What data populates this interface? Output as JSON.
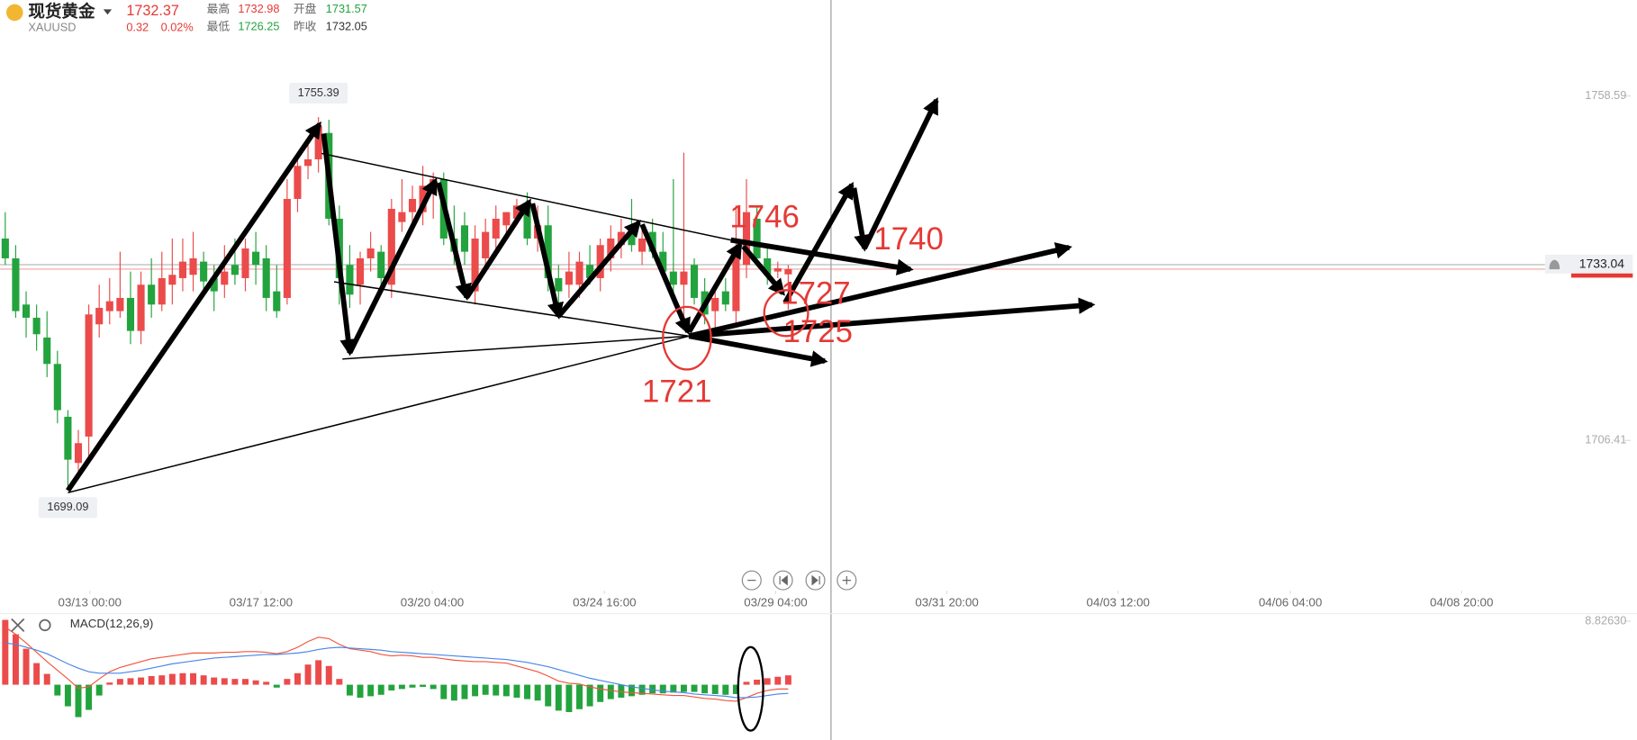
{
  "header": {
    "name": "现货黄金",
    "symbol": "XAUUSD",
    "last": 1732.37,
    "change": 0.32,
    "change_pct": "0.02%",
    "stats": [
      {
        "label": "最高",
        "value": 1732.98
      },
      {
        "label": "开盘",
        "value": 1731.57
      },
      {
        "label": "最低",
        "value": 1726.25
      },
      {
        "label": "昨收",
        "value": 1732.05
      }
    ]
  },
  "chart_data": [
    {
      "type": "candlestick",
      "up_color": "#eb4b4b",
      "down_color": "#23a33d",
      "open": [
        1737,
        1734,
        1727,
        1725,
        1722,
        1718,
        1710,
        1703,
        1707,
        1724,
        1726,
        1726,
        1728,
        1723,
        1730,
        1727,
        1730,
        1731,
        1731.5,
        1733.5,
        1731,
        1730,
        1733,
        1731,
        1735,
        1734,
        1729,
        1728,
        1743,
        1748,
        1749,
        1753,
        1740,
        1733,
        1730,
        1734,
        1735,
        1730,
        1739.5,
        1741,
        1741,
        1744,
        1746,
        1737,
        1739,
        1729,
        1734,
        1737,
        1739,
        1740,
        1742,
        1737,
        1739,
        1731,
        1730,
        1730,
        1733,
        1731,
        1734,
        1736,
        1738,
        1735,
        1738,
        1735,
        1732,
        1730,
        1733,
        1729,
        1726,
        1729,
        1726,
        1733,
        1740,
        1734,
        1732,
        1731.57
      ],
      "high": [
        1741,
        1736,
        1729,
        1727,
        1726,
        1720,
        1711,
        1708,
        1727,
        1730,
        1731,
        1735,
        1732,
        1732,
        1734,
        1735,
        1737,
        1737,
        1738,
        1735,
        1733,
        1736,
        1737,
        1737,
        1738,
        1736,
        1733,
        1746,
        1750,
        1752,
        1755.39,
        1755,
        1742,
        1736,
        1735,
        1738,
        1736,
        1743,
        1746,
        1745,
        1748,
        1747,
        1747,
        1742,
        1741,
        1739,
        1740,
        1742,
        1741,
        1743,
        1744,
        1742,
        1742,
        1733,
        1735,
        1735,
        1736,
        1737,
        1739,
        1740,
        1743,
        1739,
        1740,
        1738,
        1746,
        1750,
        1734,
        1731,
        1730,
        1731,
        1742,
        1746,
        1742,
        1736,
        1733.5,
        1732.98
      ],
      "low": [
        1733,
        1725,
        1722,
        1720,
        1716,
        1709,
        1699.09,
        1701,
        1704,
        1722,
        1724,
        1725,
        1721,
        1721,
        1725,
        1726,
        1727,
        1729,
        1729,
        1729,
        1726,
        1728,
        1730,
        1729,
        1730,
        1726,
        1725,
        1727,
        1741,
        1746,
        1747,
        1739,
        1727,
        1726.5,
        1727,
        1732,
        1729,
        1728,
        1738,
        1738,
        1739,
        1740,
        1736,
        1733,
        1733,
        1727,
        1732,
        1735,
        1737,
        1739,
        1736,
        1735,
        1729,
        1727,
        1728,
        1728,
        1730,
        1729,
        1732,
        1734,
        1735,
        1733,
        1734,
        1731,
        1728,
        1725,
        1727,
        1724,
        1723,
        1726,
        1724,
        1731,
        1733,
        1730,
        1731,
        1726.25
      ],
      "close": [
        1734,
        1726,
        1725,
        1722.5,
        1718,
        1711,
        1703.5,
        1706,
        1725.5,
        1726.5,
        1727.5,
        1728,
        1723,
        1730,
        1727,
        1731,
        1731.5,
        1733.5,
        1734,
        1730.5,
        1729,
        1732,
        1731.5,
        1735.5,
        1733,
        1728,
        1726,
        1743,
        1748,
        1749,
        1754,
        1740,
        1731,
        1728.5,
        1734,
        1735.5,
        1731,
        1741.5,
        1741,
        1743,
        1745,
        1746,
        1737,
        1735,
        1735,
        1737,
        1738,
        1740,
        1741,
        1742,
        1737,
        1739,
        1731,
        1729,
        1732,
        1733.5,
        1731,
        1736,
        1737,
        1738,
        1736,
        1737,
        1735,
        1732,
        1730,
        1732,
        1728,
        1725.5,
        1728,
        1727,
        1735,
        1741,
        1734,
        1731.5,
        1732.5,
        1732.37
      ],
      "xlim": [
        -0.5,
        147.5
      ],
      "xticks": [
        {
          "value": 8.1,
          "label": "03/13 00:00"
        },
        {
          "value": 24.5,
          "label": "03/17 12:00"
        },
        {
          "value": 40.9,
          "label": "03/20 04:00"
        },
        {
          "value": 57.4,
          "label": "03/24 16:00"
        },
        {
          "value": 73.8,
          "label": "03/29 04:00"
        },
        {
          "value": 90.2,
          "label": "03/31 20:00"
        },
        {
          "value": 106.6,
          "label": "04/03 12:00"
        },
        {
          "value": 123.1,
          "label": "04/06 04:00"
        },
        {
          "value": 139.5,
          "label": "04/08 20:00"
        }
      ],
      "ylim": [
        1684.59,
        1766.81
      ],
      "yticks": [
        1706.41,
        1758.59
      ],
      "current_price": 1733.04,
      "annotations": [
        "1746",
        "1740",
        "1727",
        "1725",
        "1721"
      ]
    },
    {
      "type": "macd",
      "title": "MACD(12,26,9)",
      "up_color": "#eb4b4b",
      "down_color": "#23a33d",
      "ylim": [
        -7.68,
        9.86
      ],
      "yticks": [
        {
          "value": 8.8263,
          "label": "8.82630"
        }
      ],
      "series": [
        {
          "style": "bar",
          "values": [
            9.0,
            7.0,
            5.0,
            3.0,
            1.5,
            -1.5,
            -3.0,
            -4.5,
            -3.5,
            -1.5,
            0.3,
            0.8,
            0.9,
            1.0,
            1.2,
            1.3,
            1.5,
            1.6,
            1.6,
            1.3,
            1.0,
            0.9,
            0.8,
            0.8,
            0.6,
            0.4,
            -0.4,
            0.8,
            1.6,
            2.8,
            3.4,
            2.6,
            0.8,
            -1.5,
            -1.8,
            -1.6,
            -1.4,
            -0.8,
            -0.6,
            -0.4,
            -0.3,
            -0.6,
            -2.0,
            -2.2,
            -2.0,
            -1.6,
            -1.4,
            -1.5,
            -1.6,
            -1.8,
            -2.0,
            -2.2,
            -3.0,
            -3.6,
            -3.8,
            -3.4,
            -3.0,
            -2.4,
            -2.0,
            -1.8,
            -1.6,
            -1.4,
            -1.2,
            -1.2,
            -1.1,
            -1.0,
            -1.0,
            -1.2,
            -1.3,
            -1.4,
            -1.3,
            0.4,
            0.7,
            0.9,
            1.1,
            1.3
          ]
        },
        {
          "style": "line",
          "color": "#f0563c",
          "values": [
            8.0,
            7.0,
            5.8,
            4.5,
            3.2,
            2.0,
            0.8,
            -0.5,
            -0.3,
            0.8,
            1.8,
            2.4,
            2.8,
            3.2,
            3.6,
            3.8,
            4.0,
            4.2,
            4.4,
            4.4,
            4.4,
            4.5,
            4.5,
            4.6,
            4.6,
            4.5,
            4.3,
            4.6,
            5.2,
            6.0,
            6.6,
            6.4,
            5.6,
            5.0,
            4.8,
            4.6,
            4.2,
            4.0,
            4.1,
            4.0,
            3.8,
            3.8,
            3.6,
            3.4,
            3.3,
            3.2,
            3.2,
            3.1,
            3.0,
            2.6,
            2.2,
            1.8,
            1.2,
            0.5,
            0.2,
            0.1,
            -0.3,
            -0.6,
            -0.8,
            -1.0,
            -1.1,
            -1.2,
            -1.3,
            -1.4,
            -1.5,
            -1.5,
            -1.7,
            -1.9,
            -2.0,
            -2.2,
            -2.3,
            -1.8,
            -1.2,
            -0.8,
            -0.6,
            -0.6
          ]
        },
        {
          "style": "line",
          "color": "#4a86e8",
          "values": [
            5.8,
            5.6,
            5.2,
            4.8,
            4.3,
            3.6,
            2.9,
            2.3,
            1.8,
            1.6,
            1.6,
            1.6,
            1.8,
            2.0,
            2.3,
            2.6,
            2.9,
            3.1,
            3.3,
            3.5,
            3.7,
            3.8,
            3.9,
            4.0,
            4.1,
            4.2,
            4.2,
            4.3,
            4.4,
            4.6,
            4.9,
            5.1,
            5.2,
            5.1,
            5.0,
            4.9,
            4.8,
            4.6,
            4.5,
            4.4,
            4.3,
            4.2,
            4.1,
            4.0,
            3.9,
            3.8,
            3.7,
            3.6,
            3.5,
            3.3,
            3.1,
            2.8,
            2.5,
            2.1,
            1.7,
            1.3,
            0.9,
            0.6,
            0.3,
            0.0,
            -0.3,
            -0.5,
            -0.7,
            -0.9,
            -1.0,
            -1.1,
            -1.3,
            -1.4,
            -1.5,
            -1.6,
            -1.8,
            -1.8,
            -1.7,
            -1.5,
            -1.3,
            -1.2
          ]
        }
      ]
    }
  ]
}
